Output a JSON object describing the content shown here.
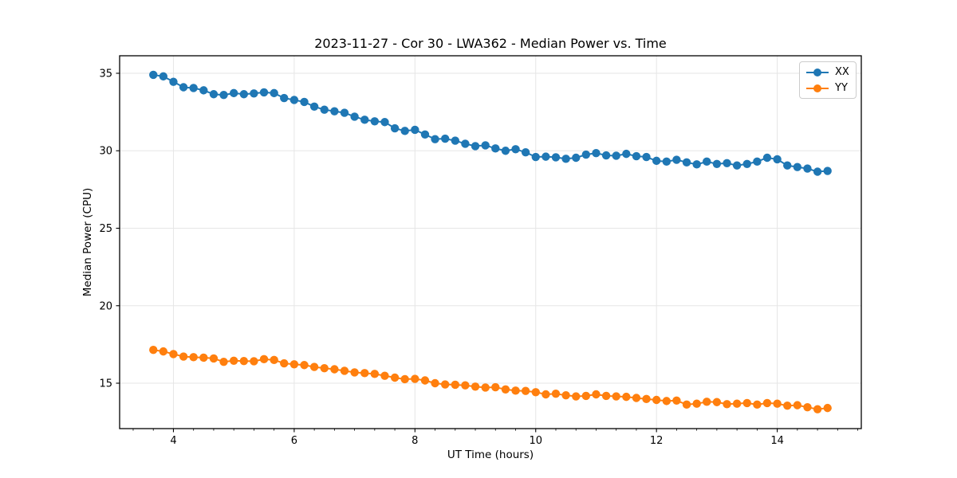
{
  "title": "2023-11-27 - Cor 30 - LWA362 - Median Power vs. Time",
  "chart_data": {
    "type": "line",
    "title": "2023-11-27 - Cor 30 - LWA362 - Median Power vs. Time",
    "xlabel": "UT Time (hours)",
    "ylabel": "Median Power (CPU)",
    "xlim": [
      3.109,
      15.392
    ],
    "ylim": [
      12.07,
      36.13
    ],
    "x_major_ticks": [
      4,
      6,
      8,
      10,
      12,
      14
    ],
    "x_minor_step": 0.33333,
    "y_major_ticks": [
      15,
      20,
      25,
      30,
      35
    ],
    "grid": true,
    "grid_color": "#e6e6e6",
    "legend_position": "upper right",
    "marker": "circle",
    "x": [
      3.667,
      3.833,
      4.0,
      4.167,
      4.333,
      4.5,
      4.667,
      4.833,
      5.0,
      5.167,
      5.333,
      5.5,
      5.667,
      5.833,
      6.0,
      6.167,
      6.333,
      6.5,
      6.667,
      6.833,
      7.0,
      7.167,
      7.333,
      7.5,
      7.667,
      7.833,
      8.0,
      8.167,
      8.333,
      8.5,
      8.667,
      8.833,
      9.0,
      9.167,
      9.333,
      9.5,
      9.667,
      9.833,
      10.0,
      10.167,
      10.333,
      10.5,
      10.667,
      10.833,
      11.0,
      11.167,
      11.333,
      11.5,
      11.667,
      11.833,
      12.0,
      12.167,
      12.333,
      12.5,
      12.667,
      12.833,
      13.0,
      13.167,
      13.333,
      13.5,
      13.667,
      13.833,
      14.0,
      14.167,
      14.333,
      14.5,
      14.667,
      14.833
    ],
    "series": [
      {
        "name": "XX",
        "color": "#1f77b4",
        "values": [
          34.9,
          34.8,
          34.45,
          34.1,
          34.05,
          33.9,
          33.65,
          33.6,
          33.72,
          33.65,
          33.7,
          33.77,
          33.72,
          33.4,
          33.28,
          33.15,
          32.85,
          32.65,
          32.55,
          32.45,
          32.2,
          32.0,
          31.9,
          31.85,
          31.45,
          31.28,
          31.35,
          31.05,
          30.75,
          30.78,
          30.65,
          30.45,
          30.3,
          30.35,
          30.15,
          30.0,
          30.1,
          29.9,
          29.6,
          29.62,
          29.58,
          29.48,
          29.55,
          29.75,
          29.85,
          29.7,
          29.68,
          29.8,
          29.65,
          29.6,
          29.35,
          29.3,
          29.42,
          29.25,
          29.12,
          29.3,
          29.15,
          29.2,
          29.05,
          29.15,
          29.3,
          29.55,
          29.45,
          29.05,
          28.95,
          28.85,
          28.65,
          28.7
        ]
      },
      {
        "name": "YY",
        "color": "#ff7f0e",
        "values": [
          17.15,
          17.05,
          16.88,
          16.72,
          16.68,
          16.65,
          16.6,
          16.38,
          16.45,
          16.43,
          16.42,
          16.55,
          16.5,
          16.28,
          16.22,
          16.17,
          16.05,
          15.97,
          15.9,
          15.8,
          15.7,
          15.65,
          15.6,
          15.48,
          15.36,
          15.26,
          15.28,
          15.18,
          15.0,
          14.92,
          14.9,
          14.86,
          14.78,
          14.72,
          14.74,
          14.6,
          14.52,
          14.5,
          14.42,
          14.28,
          14.32,
          14.22,
          14.15,
          14.18,
          14.28,
          14.18,
          14.15,
          14.12,
          14.05,
          13.98,
          13.92,
          13.85,
          13.88,
          13.62,
          13.68,
          13.8,
          13.78,
          13.65,
          13.68,
          13.72,
          13.62,
          13.72,
          13.68,
          13.55,
          13.58,
          13.45,
          13.32,
          13.4
        ]
      }
    ]
  },
  "legend": {
    "items": [
      {
        "label": "XX",
        "color": "#1f77b4"
      },
      {
        "label": "YY",
        "color": "#ff7f0e"
      }
    ]
  }
}
